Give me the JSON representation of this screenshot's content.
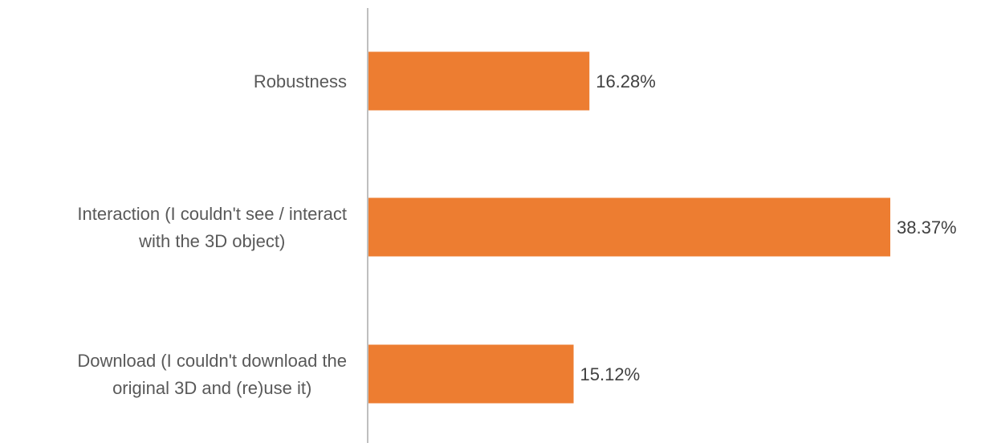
{
  "chart_data": {
    "type": "bar",
    "orientation": "horizontal",
    "categories": [
      [
        "Robustness"
      ],
      [
        "Interaction (I couldn't see / interact",
        "with the 3D object)"
      ],
      [
        "Download (I couldn't download the",
        "original 3D and (re)use it)"
      ]
    ],
    "values": [
      16.28,
      38.37,
      15.12
    ],
    "data_labels": [
      "16.28%",
      "38.37%",
      "15.12%"
    ],
    "unit": "%",
    "title": "",
    "xlabel": "",
    "ylabel": "",
    "xlim": [
      0,
      42
    ],
    "grid": false,
    "legend": "none",
    "colors": {
      "bar": "#ED7D31",
      "axis": "#BFBFBF",
      "category_text": "#595959",
      "value_text": "#404040"
    }
  }
}
